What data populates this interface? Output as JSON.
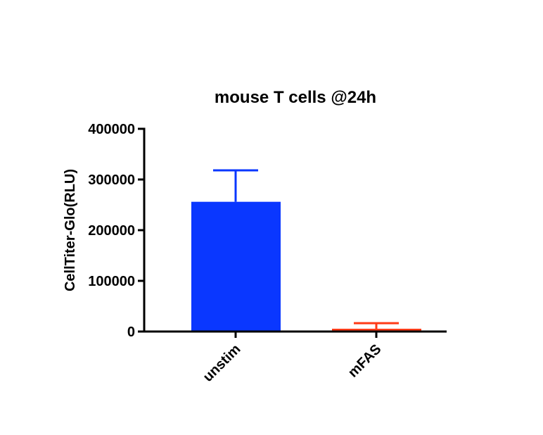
{
  "chart_data": {
    "type": "bar",
    "title": "mouse T cells  @24h",
    "y_label": "CellTiter-Glo(RLU)",
    "categories": [
      "unstim",
      "mFAS"
    ],
    "values": [
      256000,
      5500
    ],
    "errors": [
      62000,
      11000
    ],
    "colors": [
      "#0a37ff",
      "#ff3a17"
    ],
    "ylim": [
      0,
      400000
    ],
    "yticks": [
      0,
      100000,
      200000,
      300000,
      400000
    ]
  }
}
